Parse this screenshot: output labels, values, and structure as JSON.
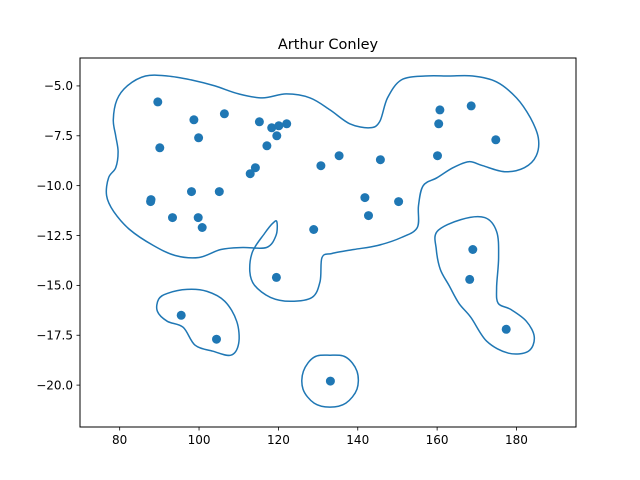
{
  "chart_data": {
    "type": "scatter",
    "title": "Arthur Conley",
    "xlabel": "",
    "ylabel": "",
    "xlim": [
      70,
      195
    ],
    "ylim": [
      -22.1,
      -3.6
    ],
    "xticks": [
      80,
      100,
      120,
      140,
      160,
      180
    ],
    "yticks": [
      -5.0,
      -7.5,
      -10.0,
      -12.5,
      -15.0,
      -17.5,
      -20.0
    ],
    "xtick_labels": [
      "80",
      "100",
      "120",
      "140",
      "160",
      "180"
    ],
    "ytick_labels": [
      "−5.0",
      "−7.5",
      "−10.0",
      "−12.5",
      "−15.0",
      "−17.5",
      "−20.0"
    ],
    "grid": false,
    "color": "#1f77b4",
    "points": [
      {
        "x": 89.6,
        "y": -5.8
      },
      {
        "x": 90.1,
        "y": -8.1
      },
      {
        "x": 87.9,
        "y": -10.7
      },
      {
        "x": 87.8,
        "y": -10.8
      },
      {
        "x": 93.3,
        "y": -11.6
      },
      {
        "x": 98.7,
        "y": -6.7
      },
      {
        "x": 99.9,
        "y": -7.6
      },
      {
        "x": 98.1,
        "y": -10.3
      },
      {
        "x": 99.8,
        "y": -11.6
      },
      {
        "x": 100.8,
        "y": -12.1
      },
      {
        "x": 105.1,
        "y": -10.3
      },
      {
        "x": 106.4,
        "y": -6.4
      },
      {
        "x": 112.9,
        "y": -9.4
      },
      {
        "x": 114.2,
        "y": -9.1
      },
      {
        "x": 115.2,
        "y": -6.8
      },
      {
        "x": 117.1,
        "y": -8.0
      },
      {
        "x": 118.3,
        "y": -7.1
      },
      {
        "x": 119.6,
        "y": -7.5
      },
      {
        "x": 120.1,
        "y": -7.0
      },
      {
        "x": 122.1,
        "y": -6.9
      },
      {
        "x": 119.5,
        "y": -14.6
      },
      {
        "x": 128.9,
        "y": -12.2
      },
      {
        "x": 130.7,
        "y": -9.0
      },
      {
        "x": 135.3,
        "y": -8.5
      },
      {
        "x": 141.8,
        "y": -10.6
      },
      {
        "x": 142.7,
        "y": -11.5
      },
      {
        "x": 145.7,
        "y": -8.7
      },
      {
        "x": 150.3,
        "y": -10.8
      },
      {
        "x": 160.1,
        "y": -8.5
      },
      {
        "x": 160.4,
        "y": -6.9
      },
      {
        "x": 160.7,
        "y": -6.2
      },
      {
        "x": 168.6,
        "y": -6.0
      },
      {
        "x": 174.8,
        "y": -7.7
      },
      {
        "x": 169.0,
        "y": -13.2
      },
      {
        "x": 168.2,
        "y": -14.7
      },
      {
        "x": 177.4,
        "y": -17.2
      },
      {
        "x": 95.5,
        "y": -16.5
      },
      {
        "x": 104.4,
        "y": -17.7
      },
      {
        "x": 133.1,
        "y": -19.8
      }
    ],
    "contours": [
      [
        [
          81.9,
          -5.0
        ],
        [
          86.5,
          -4.5
        ],
        [
          92.0,
          -4.5
        ],
        [
          98.0,
          -4.7
        ],
        [
          104.0,
          -5.0
        ],
        [
          110.0,
          -5.4
        ],
        [
          116.0,
          -5.6
        ],
        [
          122.0,
          -5.4
        ],
        [
          128.0,
          -5.6
        ],
        [
          133.0,
          -6.2
        ],
        [
          138.0,
          -6.9
        ],
        [
          143.0,
          -7.1
        ],
        [
          145.5,
          -6.8
        ],
        [
          147.5,
          -5.6
        ],
        [
          151.0,
          -4.7
        ],
        [
          157.0,
          -4.5
        ],
        [
          163.0,
          -4.5
        ],
        [
          169.0,
          -4.5
        ],
        [
          175.0,
          -4.8
        ],
        [
          180.0,
          -5.6
        ],
        [
          183.5,
          -6.6
        ],
        [
          185.5,
          -7.6
        ],
        [
          185.0,
          -8.5
        ],
        [
          182.0,
          -9.1
        ],
        [
          177.0,
          -9.3
        ],
        [
          171.5,
          -9.0
        ],
        [
          168.0,
          -8.8
        ],
        [
          164.0,
          -9.1
        ],
        [
          160.0,
          -9.6
        ],
        [
          156.5,
          -10.0
        ],
        [
          155.3,
          -11.0
        ],
        [
          155.0,
          -12.1
        ],
        [
          151.0,
          -12.6
        ],
        [
          145.0,
          -13.0
        ],
        [
          139.0,
          -13.2
        ],
        [
          133.5,
          -13.4
        ],
        [
          131.0,
          -13.6
        ],
        [
          130.5,
          -14.8
        ],
        [
          128.5,
          -15.6
        ],
        [
          123.0,
          -15.8
        ],
        [
          118.0,
          -15.6
        ],
        [
          114.0,
          -15.0
        ],
        [
          112.8,
          -14.3
        ],
        [
          113.5,
          -13.3
        ],
        [
          116.5,
          -12.4
        ],
        [
          118.5,
          -11.9
        ],
        [
          119.6,
          -11.8
        ],
        [
          119.4,
          -12.5
        ],
        [
          117.0,
          -13.1
        ],
        [
          111.0,
          -13.1
        ],
        [
          105.5,
          -13.2
        ],
        [
          100.0,
          -13.6
        ],
        [
          94.0,
          -13.5
        ],
        [
          88.5,
          -13.0
        ],
        [
          82.5,
          -12.2
        ],
        [
          78.5,
          -11.3
        ],
        [
          76.7,
          -10.5
        ],
        [
          77.2,
          -9.6
        ],
        [
          79.0,
          -9.1
        ],
        [
          79.6,
          -8.3
        ],
        [
          79.0,
          -7.5
        ],
        [
          78.4,
          -6.7
        ],
        [
          79.3,
          -5.7
        ],
        [
          81.9,
          -5.0
        ]
      ],
      [
        [
          160.0,
          -12.3
        ],
        [
          166.0,
          -11.7
        ],
        [
          172.0,
          -11.6
        ],
        [
          175.0,
          -12.3
        ],
        [
          175.5,
          -13.6
        ],
        [
          175.0,
          -15.1
        ],
        [
          175.4,
          -15.9
        ],
        [
          178.5,
          -16.2
        ],
        [
          182.5,
          -16.8
        ],
        [
          184.5,
          -17.6
        ],
        [
          183.0,
          -18.3
        ],
        [
          178.0,
          -18.4
        ],
        [
          172.5,
          -17.8
        ],
        [
          168.5,
          -16.6
        ],
        [
          165.5,
          -15.9
        ],
        [
          163.0,
          -15.0
        ],
        [
          160.8,
          -14.2
        ],
        [
          159.8,
          -13.2
        ],
        [
          160.0,
          -12.3
        ]
      ],
      [
        [
          92.0,
          -15.4
        ],
        [
          97.0,
          -15.2
        ],
        [
          102.0,
          -15.3
        ],
        [
          106.5,
          -15.8
        ],
        [
          109.5,
          -16.8
        ],
        [
          110.0,
          -17.9
        ],
        [
          108.0,
          -18.5
        ],
        [
          103.5,
          -18.3
        ],
        [
          99.0,
          -18.0
        ],
        [
          96.0,
          -17.1
        ],
        [
          92.0,
          -16.8
        ],
        [
          89.5,
          -16.3
        ],
        [
          89.8,
          -15.7
        ],
        [
          92.0,
          -15.4
        ]
      ],
      [
        [
          133.0,
          -18.5
        ],
        [
          137.0,
          -18.6
        ],
        [
          139.8,
          -19.3
        ],
        [
          139.8,
          -20.2
        ],
        [
          137.0,
          -20.9
        ],
        [
          133.0,
          -21.1
        ],
        [
          129.0,
          -20.9
        ],
        [
          126.2,
          -20.2
        ],
        [
          126.3,
          -19.3
        ],
        [
          129.0,
          -18.6
        ],
        [
          133.0,
          -18.5
        ]
      ]
    ]
  }
}
